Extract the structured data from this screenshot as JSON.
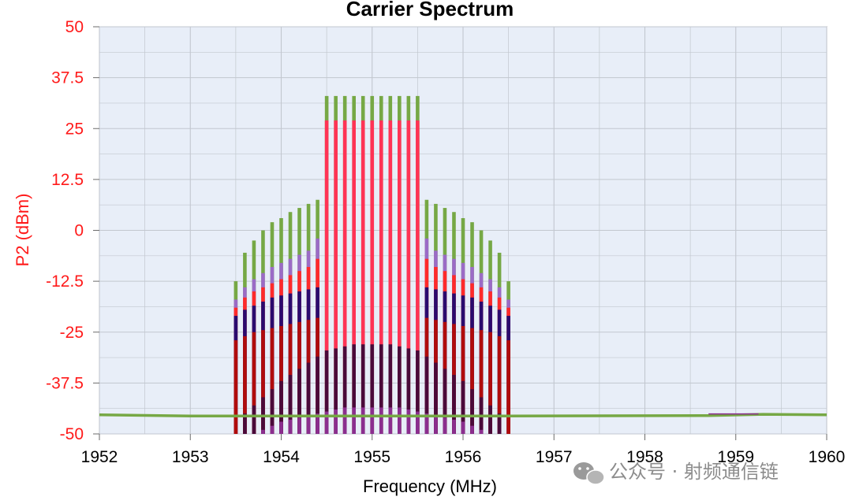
{
  "chart_data": {
    "type": "bar",
    "title": "Carrier Spectrum",
    "xlabel": "Frequency (MHz)",
    "ylabel": "P2 (dBm)",
    "xlim": [
      1952,
      1960
    ],
    "ylim": [
      -50,
      50
    ],
    "xticks": [
      "1952",
      "1953",
      "1954",
      "1955",
      "1956",
      "1957",
      "1958",
      "1959",
      "1960"
    ],
    "yticks": [
      "50",
      "37.5",
      "25",
      "12.5",
      "0",
      "-12.5",
      "-25",
      "-37.5",
      "-50"
    ],
    "grid": true,
    "legend": "none",
    "colors": {
      "plot_background": "#e8eef8",
      "grid": "#c2c7cf",
      "ytick_text": "#ff1a1a",
      "ylabel_text": "#ff1a1a"
    },
    "series": [
      {
        "color": "#76a845",
        "x": [
          1953.5,
          1953.6,
          1953.7,
          1953.8,
          1953.9,
          1954.0,
          1954.1,
          1954.2,
          1954.3,
          1954.4,
          1954.5,
          1954.6,
          1954.7,
          1954.8,
          1954.9,
          1955.0,
          1955.1,
          1955.2,
          1955.3,
          1955.4,
          1955.5,
          1955.6,
          1955.7,
          1955.8,
          1955.9,
          1956.0,
          1956.1,
          1956.2,
          1956.3,
          1956.4,
          1956.5
        ],
        "values": [
          -12.5,
          -5.5,
          -2.5,
          0,
          2,
          3,
          4.5,
          5.5,
          6.5,
          7.5,
          33,
          33,
          33,
          33,
          33,
          33,
          33,
          33,
          33,
          33,
          33,
          7.5,
          6.5,
          5.5,
          4.5,
          3,
          2,
          0,
          -2.5,
          -5.5,
          -12.5
        ]
      },
      {
        "color": "#9b6bc6",
        "x": [
          1953.5,
          1953.6,
          1953.7,
          1953.8,
          1953.9,
          1954.0,
          1954.1,
          1954.2,
          1954.3,
          1954.4,
          1955.6,
          1955.7,
          1955.8,
          1955.9,
          1956.0,
          1956.1,
          1956.2,
          1956.3,
          1956.4,
          1956.5
        ],
        "values": [
          -17,
          -14,
          -12,
          -10.5,
          -9,
          -8,
          -7,
          -6,
          -5,
          -2,
          -2,
          -5,
          -6,
          -7,
          -8,
          -9,
          -10.5,
          -12,
          -14,
          -17
        ]
      },
      {
        "color": "#ff2a2a",
        "x": [
          1953.5,
          1953.6,
          1953.7,
          1953.8,
          1953.9,
          1954.0,
          1954.1,
          1954.2,
          1954.3,
          1954.4,
          1955.6,
          1955.7,
          1955.8,
          1955.9,
          1956.0,
          1956.1,
          1956.2,
          1956.3,
          1956.4,
          1956.5
        ],
        "values": [
          -19,
          -16.5,
          -15,
          -14,
          -13,
          -12,
          -11,
          -10,
          -9,
          -7,
          -7,
          -9,
          -10,
          -11,
          -12,
          -13,
          -14,
          -15,
          -16.5,
          -19
        ]
      },
      {
        "color": "#2a0a6e",
        "x": [
          1953.5,
          1953.6,
          1953.7,
          1953.8,
          1953.9,
          1954.0,
          1954.1,
          1954.2,
          1954.3,
          1954.4,
          1955.6,
          1955.7,
          1955.8,
          1955.9,
          1956.0,
          1956.1,
          1956.2,
          1956.3,
          1956.4,
          1956.5
        ],
        "values": [
          -21,
          -19.5,
          -18.5,
          -17.5,
          -16.5,
          -16,
          -15.5,
          -15,
          -14.5,
          -14,
          -14,
          -14.5,
          -15,
          -15.5,
          -16,
          -16.5,
          -17.5,
          -18.5,
          -19.5,
          -21
        ]
      },
      {
        "color": "#b00c0c",
        "x": [
          1953.5,
          1953.6,
          1953.7,
          1953.8,
          1953.9,
          1954.0,
          1954.1,
          1954.2,
          1954.3,
          1954.4,
          1955.6,
          1955.7,
          1955.8,
          1955.9,
          1956.0,
          1956.1,
          1956.2,
          1956.3,
          1956.4,
          1956.5
        ],
        "values": [
          -27,
          -26,
          -25,
          -24.5,
          -24,
          -23.5,
          -23,
          -22.5,
          -22,
          -21.5,
          -21.5,
          -22,
          -22.5,
          -23,
          -23.5,
          -24,
          -24.5,
          -25,
          -26,
          -27
        ]
      },
      {
        "color": "#ff3355",
        "x": [
          1954.5,
          1954.6,
          1954.7,
          1954.8,
          1954.9,
          1955.0,
          1955.1,
          1955.2,
          1955.3,
          1955.4,
          1955.5
        ],
        "values": [
          27,
          27,
          27,
          27,
          27,
          27,
          27,
          27,
          27,
          27,
          27
        ]
      },
      {
        "color": "#4a0a3a",
        "x": [
          1953.6,
          1953.7,
          1953.8,
          1953.9,
          1954.0,
          1954.1,
          1954.2,
          1954.3,
          1954.4,
          1954.5,
          1954.6,
          1954.7,
          1954.8,
          1954.9,
          1955.0,
          1955.1,
          1955.2,
          1955.3,
          1955.4,
          1955.5,
          1955.6,
          1955.7,
          1955.8,
          1955.9,
          1956.0,
          1956.1,
          1956.2,
          1956.3,
          1956.4
        ],
        "values": [
          -45,
          -43,
          -41,
          -39,
          -37,
          -35.5,
          -34,
          -32.5,
          -31,
          -29.5,
          -29,
          -28.5,
          -28,
          -28,
          -28,
          -28,
          -28,
          -28.5,
          -29,
          -29.5,
          -31,
          -32.5,
          -34,
          -35.5,
          -37,
          -39,
          -41,
          -43,
          -45
        ]
      },
      {
        "color": "#8b2e8f",
        "x": [
          1953.6,
          1953.7,
          1953.8,
          1953.9,
          1954.0,
          1954.1,
          1954.2,
          1954.3,
          1954.4,
          1954.5,
          1954.6,
          1954.7,
          1954.8,
          1954.9,
          1955.0,
          1955.1,
          1955.2,
          1955.3,
          1955.4,
          1955.5,
          1955.6,
          1955.7,
          1955.8,
          1955.9,
          1956.0,
          1956.1,
          1956.2,
          1956.3,
          1956.4
        ],
        "values": [
          -50,
          -50,
          -49,
          -48,
          -47,
          -46.5,
          -46,
          -45.5,
          -45,
          -44.5,
          -44,
          -43.5,
          -43.5,
          -43.5,
          -43.5,
          -43.5,
          -43.5,
          -43.5,
          -44,
          -44.5,
          -45,
          -45.5,
          -46,
          -46.5,
          -47,
          -48,
          -49,
          -50,
          -50
        ]
      }
    ],
    "noise_floor": {
      "color": "#76a845",
      "x": [
        1952,
        1953,
        1953.5,
        1956.5,
        1958.7,
        1959.3,
        1960
      ],
      "values": [
        -45.3,
        -45.6,
        -45.6,
        -45.6,
        -45.5,
        -45.2,
        -45.3
      ]
    }
  },
  "watermark": {
    "text": "公众号 · 射频通信链"
  }
}
